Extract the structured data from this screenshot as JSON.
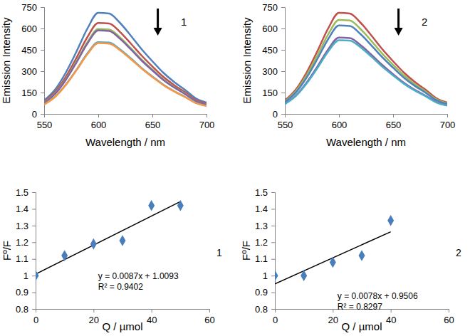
{
  "chart_data": [
    {
      "type": "line",
      "x": [
        550,
        560,
        570,
        580,
        590,
        600,
        610,
        620,
        630,
        640,
        650,
        660,
        670,
        680,
        690,
        700
      ],
      "series": [
        {
          "color": "#4f81bd",
          "values": [
            95,
            170,
            290,
            440,
            600,
            710,
            705,
            640,
            550,
            455,
            370,
            290,
            225,
            170,
            110,
            80
          ]
        },
        {
          "color": "#c0504d",
          "values": [
            86,
            153,
            261,
            396,
            540,
            639,
            635,
            576,
            495,
            410,
            333,
            261,
            203,
            153,
            99,
            72
          ]
        },
        {
          "color": "#9bbb59",
          "values": [
            80,
            143,
            244,
            370,
            504,
            596,
            592,
            538,
            462,
            382,
            311,
            244,
            189,
            143,
            92,
            67
          ]
        },
        {
          "color": "#8064a2",
          "values": [
            78,
            140,
            239,
            363,
            495,
            586,
            582,
            528,
            454,
            375,
            305,
            239,
            186,
            140,
            91,
            66
          ]
        },
        {
          "color": "#4bacc6",
          "values": [
            67,
            121,
            206,
            312,
            426,
            504,
            501,
            454,
            391,
            323,
            263,
            206,
            160,
            121,
            78,
            57
          ]
        },
        {
          "color": "#f79646",
          "values": [
            67,
            119,
            203,
            308,
            420,
            497,
            494,
            448,
            385,
            319,
            259,
            203,
            158,
            119,
            77,
            56
          ]
        }
      ],
      "xlabel": "Wavelength / nm",
      "ylabel": "Emission Intensity",
      "xlim": [
        550,
        700
      ],
      "xticks": [
        550,
        600,
        650,
        700
      ],
      "ylim": [
        0,
        750
      ],
      "yticks": [
        0,
        150,
        300,
        450,
        600,
        750
      ],
      "annotations": [
        "1"
      ],
      "grid": false
    },
    {
      "type": "line",
      "x": [
        550,
        560,
        570,
        580,
        590,
        600,
        610,
        620,
        630,
        640,
        650,
        660,
        670,
        680,
        690,
        700
      ],
      "series": [
        {
          "color": "#c0504d",
          "values": [
            95,
            170,
            290,
            440,
            600,
            710,
            705,
            640,
            550,
            455,
            370,
            290,
            225,
            170,
            110,
            80
          ]
        },
        {
          "color": "#9bbb59",
          "values": [
            88,
            158,
            270,
            409,
            558,
            660,
            656,
            595,
            512,
            423,
            344,
            270,
            209,
            158,
            102,
            74
          ]
        },
        {
          "color": "#4f81bd",
          "values": [
            83,
            149,
            254,
            385,
            525,
            621,
            617,
            560,
            481,
            398,
            324,
            254,
            197,
            149,
            96,
            70
          ]
        },
        {
          "color": "#8064a2",
          "values": [
            72,
            128,
            219,
            332,
            453,
            536,
            532,
            483,
            415,
            344,
            279,
            219,
            170,
            128,
            83,
            60
          ]
        },
        {
          "color": "#4bacc6",
          "values": [
            69,
            124,
            212,
            321,
            438,
            518,
            515,
            467,
            402,
            332,
            270,
            212,
            164,
            124,
            80,
            58
          ]
        }
      ],
      "xlabel": "Wavelength / nm",
      "ylabel": "Emission Intensity",
      "xlim": [
        550,
        700
      ],
      "xticks": [
        550,
        600,
        650,
        700
      ],
      "ylim": [
        0,
        750
      ],
      "yticks": [
        0,
        150,
        300,
        450,
        600,
        750
      ],
      "annotations": [
        "2"
      ],
      "grid": false
    },
    {
      "type": "scatter",
      "x": [
        0,
        10,
        20,
        30,
        40,
        50
      ],
      "values": [
        1,
        1.12,
        1.19,
        1.21,
        1.42,
        1.42
      ],
      "color": "#4a7ebb",
      "marker": "diamond",
      "trendline": {
        "slope": 0.0087,
        "intercept": 1.0093,
        "equation": "y = 0.0087x + 1.0093",
        "r_squared": "R² = 0.9402"
      },
      "xlabel": "Q / µmol",
      "ylabel": "Fº/F",
      "xlim": [
        0,
        60
      ],
      "xticks": [
        0,
        20,
        40,
        60
      ],
      "ylim": [
        0.8,
        1.5
      ],
      "yticks": [
        0.8,
        0.9,
        1,
        1.1,
        1.2,
        1.3,
        1.4,
        1.5
      ],
      "annotations": [
        "1"
      ],
      "grid": false
    },
    {
      "type": "scatter",
      "x": [
        0,
        10,
        20,
        30,
        40
      ],
      "values": [
        1,
        1,
        1.08,
        1.12,
        1.33
      ],
      "color": "#4a7ebb",
      "marker": "diamond",
      "trendline": {
        "slope": 0.0078,
        "intercept": 0.9506,
        "equation": "y = 0.0078x + 0.9506",
        "r_squared": "R² = 0.8297"
      },
      "xlabel": "Q / µmol",
      "ylabel": "Fº/F",
      "xlim": [
        0,
        60
      ],
      "xticks": [
        0,
        20,
        40,
        60
      ],
      "ylim": [
        0.8,
        1.5
      ],
      "yticks": [
        0.8,
        0.9,
        1,
        1.1,
        1.2,
        1.3,
        1.4,
        1.5
      ],
      "annotations": [
        "2"
      ],
      "grid": false
    }
  ]
}
